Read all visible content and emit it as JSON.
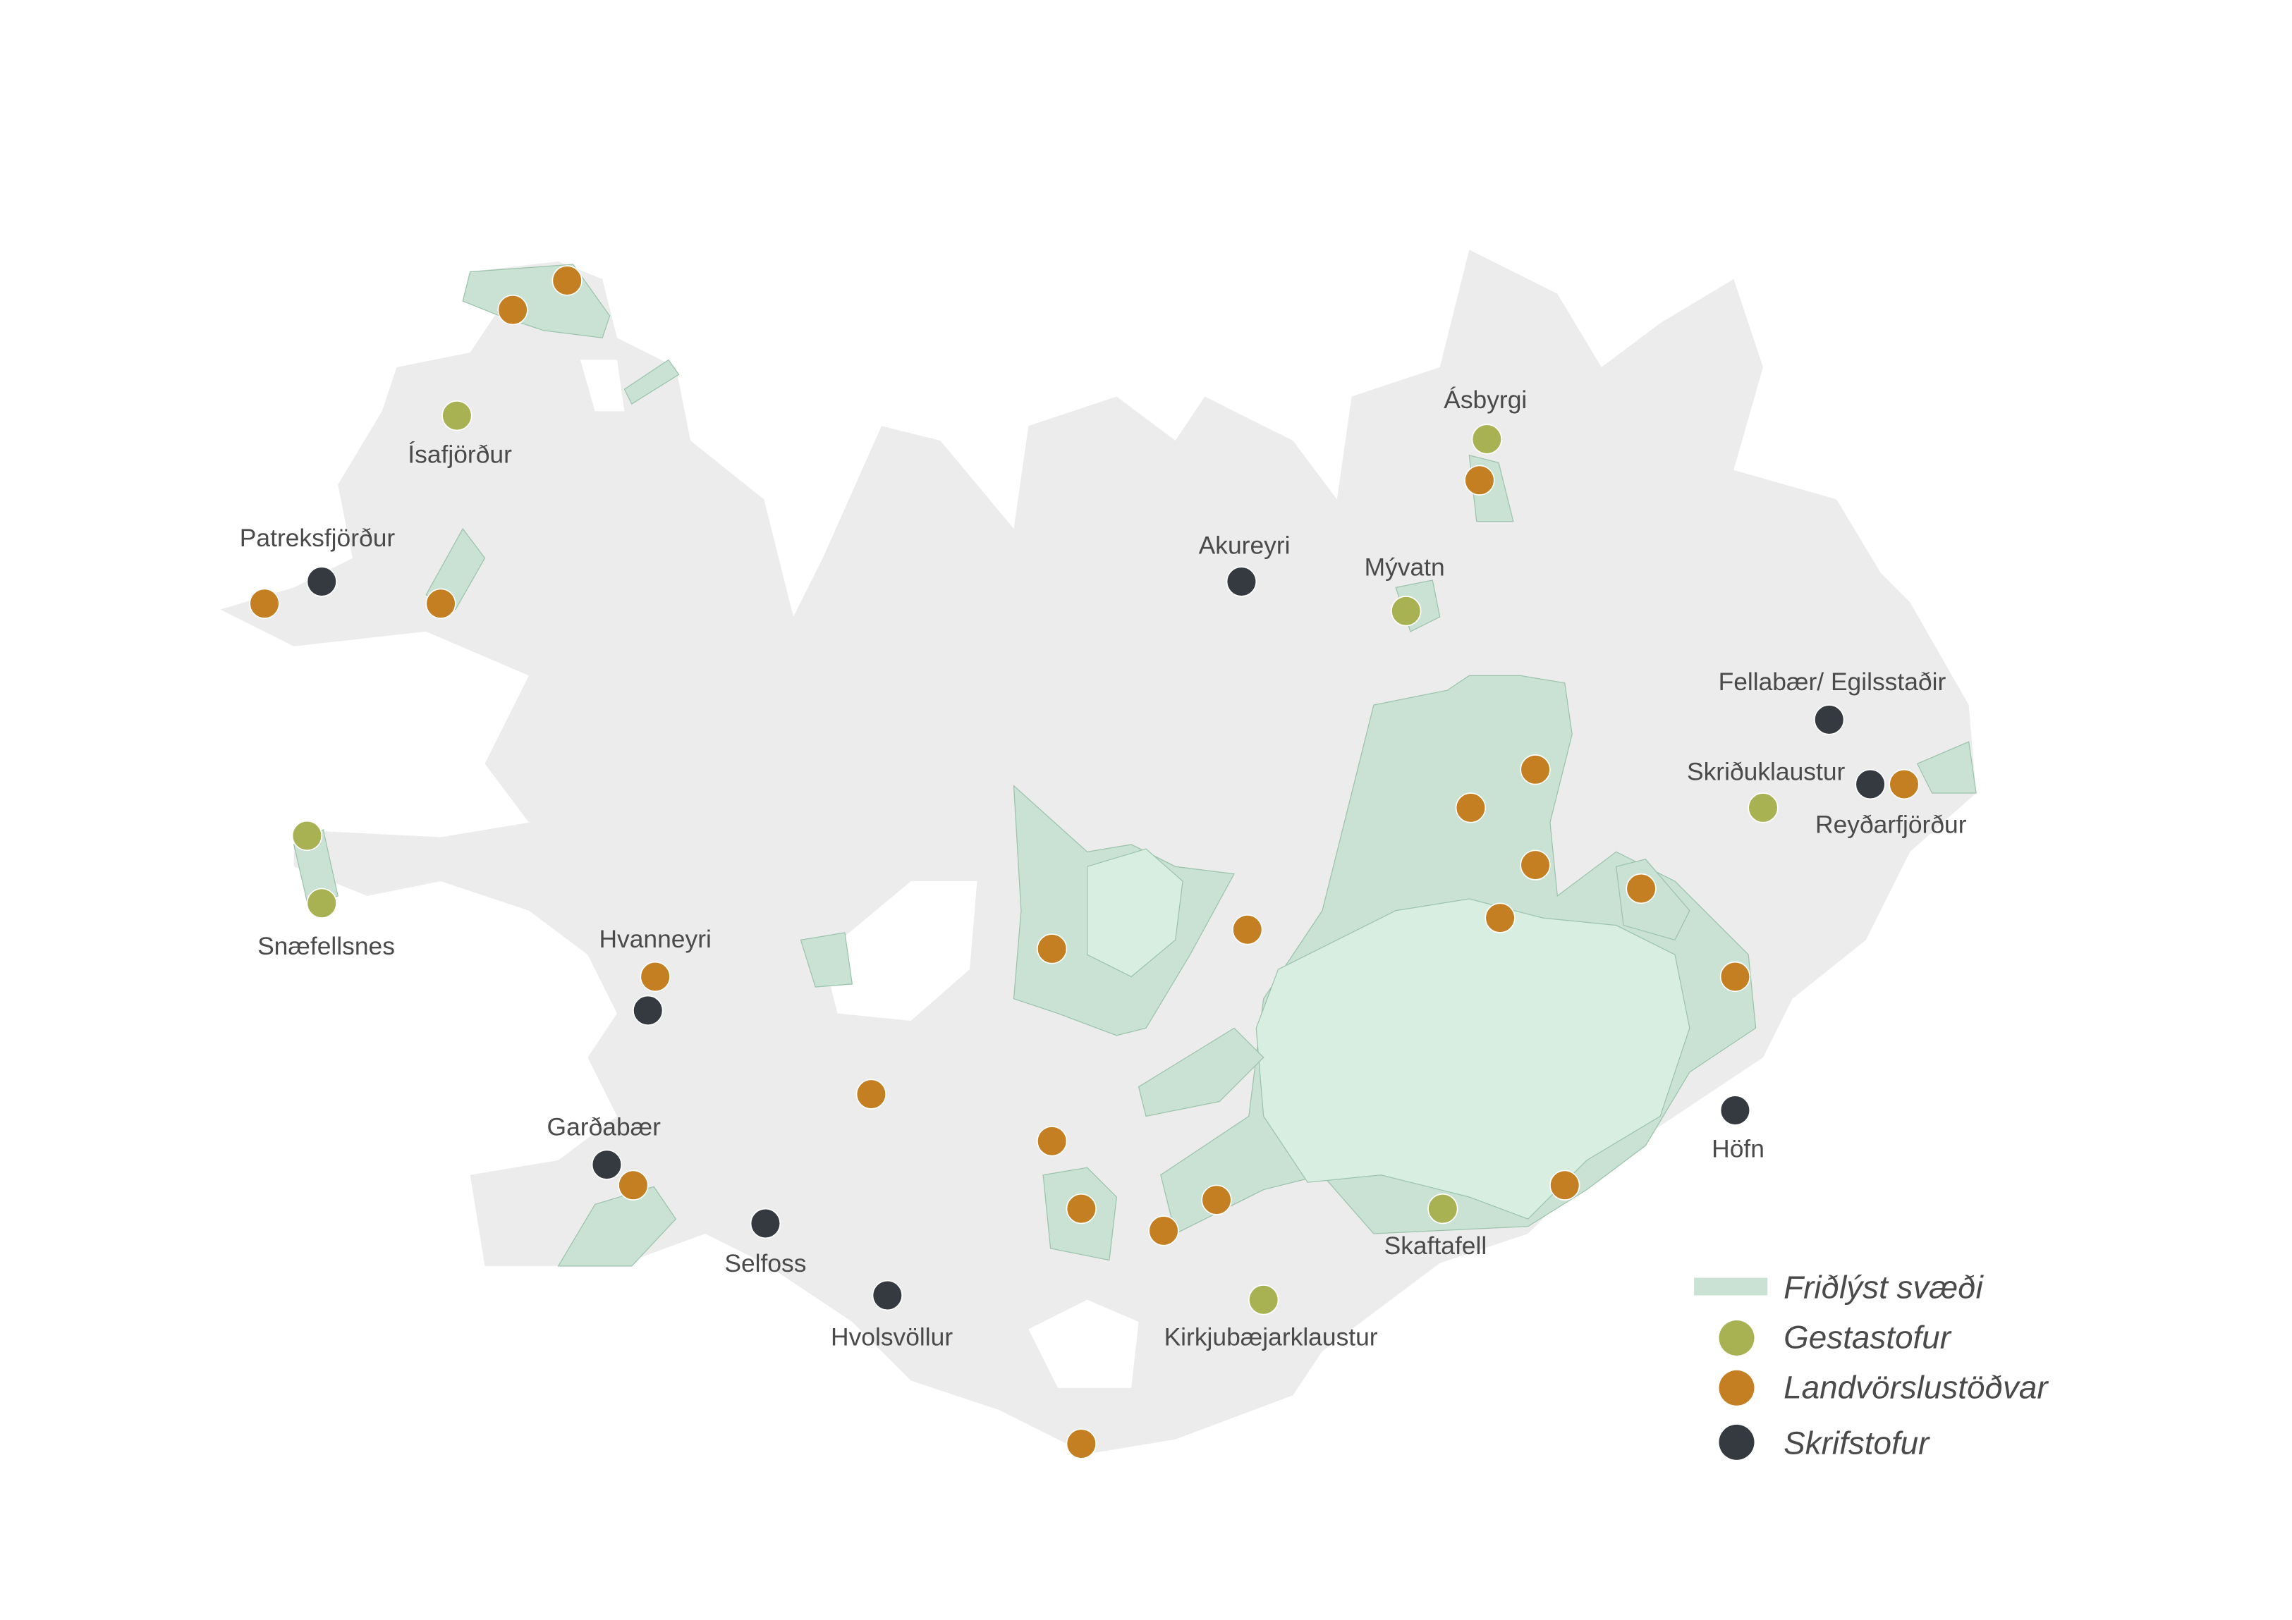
{
  "colors": {
    "land": "#ececec",
    "protected_area": "#c9e2d4",
    "glacier_area": "#d8eee1",
    "Gestastofur": "#a8b253",
    "Landvorslustodvar": "#c47f22",
    "Skrifstofur": "#343a40",
    "label_text": "#4a4a4a"
  },
  "legend": {
    "protected_area": "Friðlýst svæði",
    "visitor_centers": "Gestastofur",
    "ranger_stations": "Landvörslustöðvar",
    "offices": "Skrifstofur"
  },
  "place_labels": [
    "Ísafjörður",
    "Patreksfjörður",
    "Ásbyrgi",
    "Akureyri",
    "Mývatn",
    "Fellabær/ Egilsstaðir",
    "Skriðuklaustur",
    "Reyðarfjörður",
    "Snæfellsnes",
    "Hvanneyri",
    "Garðabær",
    "Selfoss",
    "Hvolsvöllur",
    "Kirkjubæjarklaustur",
    "Skaftafell",
    "Höfn"
  ],
  "markers": {
    "ranger_stations_count": 23,
    "visitor_centers_count": 8,
    "offices_count": 9
  }
}
